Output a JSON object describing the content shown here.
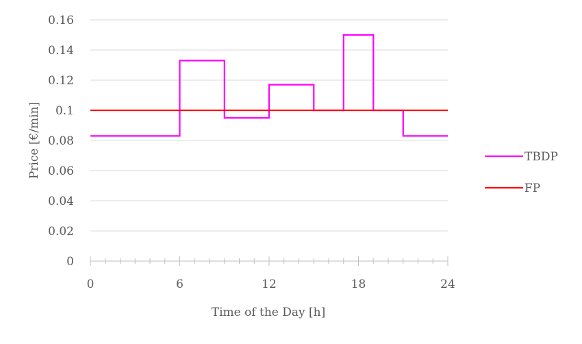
{
  "chart_data": {
    "type": "line",
    "title": "",
    "xlabel": "Time of the Day [h]",
    "ylabel": "Price [€/min]",
    "xlim": [
      0,
      24
    ],
    "ylim": [
      0,
      0.16
    ],
    "x_ticks": [
      0,
      6,
      12,
      18,
      24
    ],
    "x_minor_step": 1,
    "y_ticks": [
      0,
      0.02,
      0.04,
      0.06,
      0.08,
      0.1,
      0.12,
      0.14,
      0.16
    ],
    "y_tick_labels": [
      "0",
      "0.02",
      "0.04",
      "0.06",
      "0.08",
      "0.1",
      "0.12",
      "0.14",
      "0.16"
    ],
    "grid": "horizontal",
    "legend_position": "right",
    "series": [
      {
        "name": "TBDP",
        "color": "#ff00ff",
        "step": true,
        "x": [
          0,
          6,
          6,
          9,
          9,
          12,
          12,
          15,
          15,
          17,
          17,
          19,
          19,
          21,
          21,
          24
        ],
        "y": [
          0.083,
          0.083,
          0.133,
          0.133,
          0.095,
          0.095,
          0.117,
          0.117,
          0.1,
          0.1,
          0.15,
          0.15,
          0.1,
          0.1,
          0.083,
          0.083
        ]
      },
      {
        "name": "FP",
        "color": "#ff0000",
        "step": false,
        "x": [
          0,
          24
        ],
        "y": [
          0.1,
          0.1
        ]
      }
    ]
  }
}
